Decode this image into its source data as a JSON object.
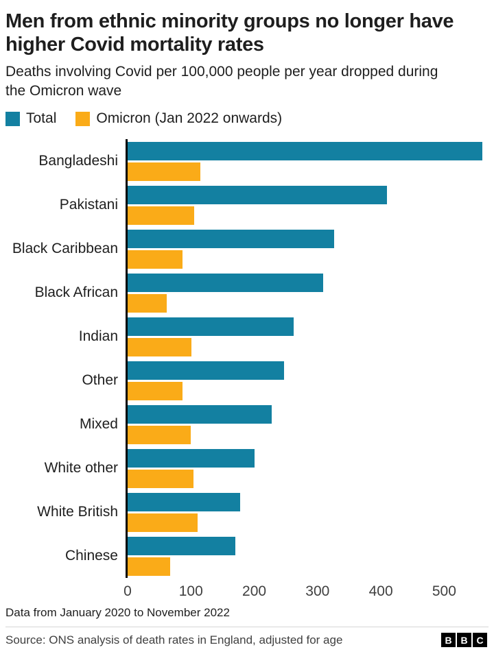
{
  "header": {
    "title": "Men from ethnic minority groups no longer have higher Covid mortality rates",
    "subtitle": "Deaths involving Covid per 100,000 people per year dropped during the Omicron wave"
  },
  "chart_data": {
    "type": "bar",
    "orientation": "horizontal",
    "title": "Men from ethnic minority groups no longer have higher Covid mortality rates",
    "subtitle": "Deaths involving Covid per 100,000 people per year dropped during the Omicron wave",
    "categories": [
      "Bangladeshi",
      "Pakistani",
      "Black Caribbean",
      "Black African",
      "Indian",
      "Other",
      "Mixed",
      "White other",
      "White British",
      "Chinese"
    ],
    "series": [
      {
        "name": "Total",
        "color": "#1380A1",
        "values": [
          560,
          410,
          326,
          309,
          262,
          247,
          228,
          200,
          178,
          170
        ]
      },
      {
        "name": "Omicron (Jan 2022 onwards)",
        "color": "#FAAB18",
        "values": [
          115,
          105,
          87,
          62,
          101,
          87,
          100,
          104,
          110,
          67
        ]
      }
    ],
    "xlabel": "",
    "ylabel": "",
    "xlim": [
      0,
      570
    ],
    "x_ticks": [
      0,
      100,
      200,
      300,
      400,
      500
    ],
    "grid": false,
    "legend_position": "top"
  },
  "footer": {
    "note": "Data from January 2020 to November 2022",
    "source": "Source: ONS analysis of death rates in England, adjusted for age",
    "logo_letters": [
      "B",
      "B",
      "C"
    ]
  }
}
